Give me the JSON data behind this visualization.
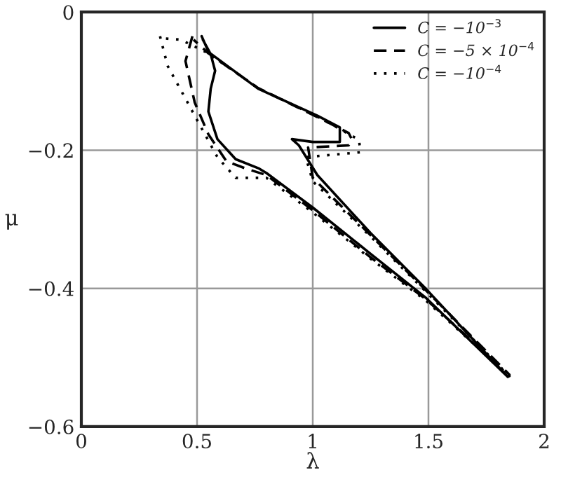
{
  "chart_data": {
    "type": "line",
    "xlabel": "λ",
    "ylabel": "μ",
    "xlim": [
      0,
      2
    ],
    "xticks": [
      0,
      0.5,
      1,
      1.5,
      2
    ],
    "ylim": [
      -0.6,
      0
    ],
    "yticks": [
      {
        "value": -0.6,
        "label": "−0.6"
      },
      {
        "value": -0.4,
        "label": "−0.4"
      },
      {
        "value": -0.2,
        "label": "−0.2"
      },
      0
    ],
    "grid": true,
    "legend": "top right",
    "marker": "none",
    "series": [
      {
        "name": "C = −10$^{−3}$",
        "color": "#000000",
        "line_style": "solid",
        "x": [
          0.52,
          0.55,
          0.764,
          1.02,
          1.117,
          1.117,
          1.0,
          0.91,
          0.94,
          1.02,
          1.25,
          1.49,
          1.843,
          1.49,
          1.25,
          1.0,
          0.8,
          0.765,
          0.667,
          0.588,
          0.549,
          0.559,
          0.578,
          0.559,
          0.525
        ],
        "values": [
          -0.035,
          -0.058,
          -0.111,
          -0.15,
          -0.167,
          -0.188,
          -0.188,
          -0.184,
          -0.193,
          -0.236,
          -0.32,
          -0.401,
          -0.528,
          -0.414,
          -0.35,
          -0.283,
          -0.233,
          -0.226,
          -0.213,
          -0.184,
          -0.144,
          -0.111,
          -0.085,
          -0.061,
          -0.04
        ]
      },
      {
        "name": "C = −5 × 10$^{−4}$",
        "color": "#000000",
        "line_style": "dashed",
        "x": [
          0.48,
          0.45,
          0.49,
          0.549,
          0.627,
          0.706,
          0.8,
          1.0,
          1.25,
          1.49,
          1.85,
          1.49,
          1.25,
          1.0,
          0.98,
          1.155,
          1.17,
          1.155,
          1.02,
          0.764,
          0.55,
          0.485
        ],
        "values": [
          -0.035,
          -0.071,
          -0.131,
          -0.177,
          -0.216,
          -0.226,
          -0.236,
          -0.287,
          -0.355,
          -0.416,
          -0.525,
          -0.403,
          -0.323,
          -0.24,
          -0.196,
          -0.193,
          -0.185,
          -0.175,
          -0.152,
          -0.11,
          -0.06,
          -0.04
        ]
      },
      {
        "name": "C = −10$^{−4}$",
        "color": "#000000",
        "line_style": "dotted",
        "x": [
          0.34,
          0.373,
          0.49,
          0.588,
          0.667,
          0.8,
          1.0,
          1.25,
          1.49,
          1.85,
          1.49,
          1.25,
          1.0,
          0.97,
          1.206,
          1.2,
          1.03,
          0.764,
          0.55,
          0.43,
          0.35
        ],
        "values": [
          -0.035,
          -0.078,
          -0.15,
          -0.21,
          -0.24,
          -0.24,
          -0.29,
          -0.357,
          -0.418,
          -0.527,
          -0.405,
          -0.325,
          -0.245,
          -0.21,
          -0.203,
          -0.185,
          -0.153,
          -0.11,
          -0.06,
          -0.04,
          -0.038
        ]
      }
    ]
  }
}
